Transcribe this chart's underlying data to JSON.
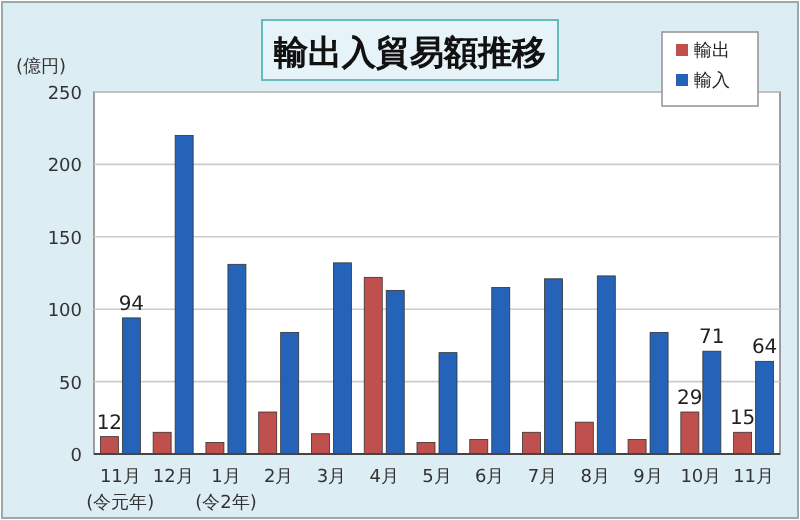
{
  "chart_data": {
    "type": "bar",
    "title": "輸出入貿易額推移",
    "ylabel": "(億円)",
    "categories": [
      "11月\n(令元年)",
      "12月",
      "1月\n(令2年)",
      "2月",
      "3月",
      "4月",
      "5月",
      "6月",
      "7月",
      "8月",
      "9月",
      "10月",
      "11月"
    ],
    "series": [
      {
        "name": "輸出",
        "color": "#c0504d",
        "values": [
          12,
          15,
          8,
          29,
          14,
          122,
          8,
          10,
          15,
          22,
          10,
          29,
          15
        ],
        "value_labels": [
          "12",
          null,
          null,
          null,
          null,
          null,
          null,
          null,
          null,
          null,
          null,
          "29",
          "15"
        ]
      },
      {
        "name": "輸入",
        "color": "#2563b8",
        "values": [
          94,
          220,
          131,
          84,
          132,
          113,
          70,
          115,
          121,
          123,
          84,
          71,
          64
        ],
        "value_labels": [
          "94",
          null,
          null,
          null,
          null,
          null,
          null,
          null,
          null,
          null,
          null,
          "71",
          "64"
        ]
      }
    ],
    "ylim": [
      0,
      250
    ],
    "yticks": [
      0,
      50,
      100,
      150,
      200,
      250
    ],
    "grid": "y",
    "legend": "top right"
  }
}
